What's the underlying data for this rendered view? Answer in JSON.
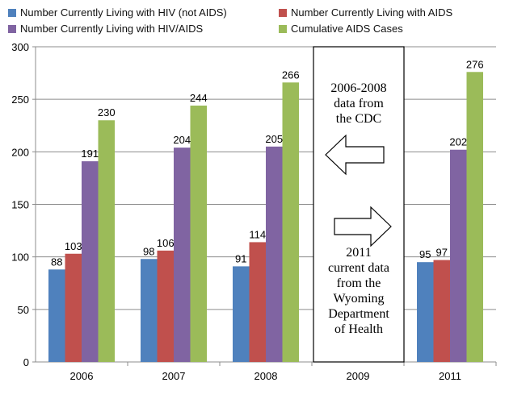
{
  "chart_data": {
    "type": "bar",
    "categories": [
      "2006",
      "2007",
      "2008",
      "2009",
      "2011"
    ],
    "series": [
      {
        "name": "Number Currently Living with HIV (not AIDS)",
        "color": "#4f81bd",
        "values": [
          88,
          98,
          91,
          null,
          95
        ]
      },
      {
        "name": "Number Currently Living with AIDS",
        "color": "#c0504d",
        "values": [
          103,
          106,
          114,
          null,
          97
        ]
      },
      {
        "name": "Number Currently Living with HIV/AIDS",
        "color": "#8064a2",
        "values": [
          191,
          204,
          205,
          null,
          202
        ]
      },
      {
        "name": "Cumulative AIDS Cases",
        "color": "#9bbb59",
        "values": [
          230,
          244,
          266,
          null,
          276
        ]
      }
    ],
    "ylim": [
      0,
      300
    ],
    "yticks": [
      "0",
      "50",
      "100",
      "150",
      "200",
      "250",
      "300"
    ],
    "grid": true,
    "legend": "top",
    "annotations": {
      "top_text": [
        "2006-2008",
        "data from",
        "the CDC"
      ],
      "bottom_text": [
        "2011",
        "current data",
        "from the",
        "Wyoming",
        "Department",
        "of Health"
      ],
      "left_arrow": "arrow-left",
      "right_arrow": "arrow-right"
    }
  }
}
